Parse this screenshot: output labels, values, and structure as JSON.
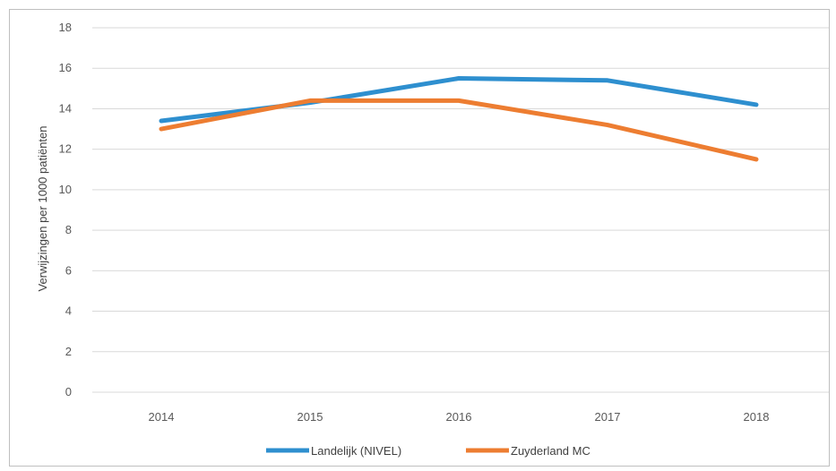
{
  "chart_data": {
    "type": "line",
    "title": "",
    "xlabel": "",
    "ylabel": "Verwijzingen per 1000 patiënten",
    "categories": [
      "2014",
      "2015",
      "2016",
      "2017",
      "2018"
    ],
    "ylim": [
      0,
      18
    ],
    "yticks": [
      0,
      2,
      4,
      6,
      8,
      10,
      12,
      14,
      16,
      18
    ],
    "grid": "horizontal",
    "legend_position": "bottom",
    "series": [
      {
        "name": "Landelijk (NIVEL)",
        "color": "#2e8fcf",
        "values": [
          13.4,
          14.3,
          15.5,
          15.4,
          14.2
        ]
      },
      {
        "name": "Zuyderland MC",
        "color": "#ed7d31",
        "values": [
          13.0,
          14.4,
          14.4,
          13.2,
          11.5
        ]
      }
    ]
  }
}
